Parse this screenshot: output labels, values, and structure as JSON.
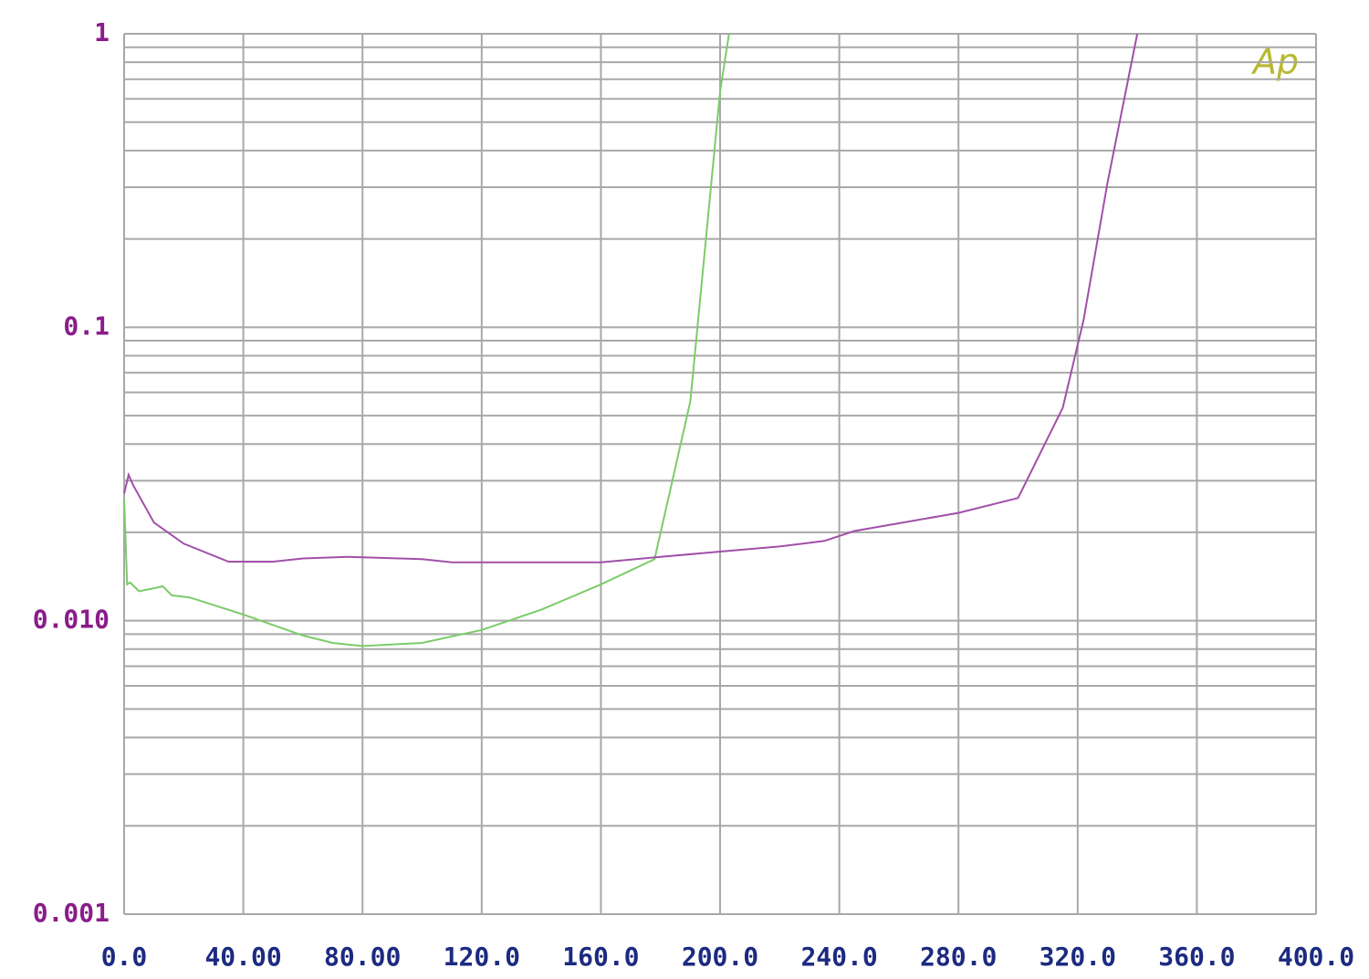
{
  "chart_data": {
    "type": "line",
    "logo": "Ap",
    "log_y": true,
    "grid": true,
    "minor_grid": true,
    "xlim": [
      0,
      400
    ],
    "xticks": [
      {
        "value": 0,
        "label": "0.0"
      },
      {
        "value": 40,
        "label": "40.00"
      },
      {
        "value": 80,
        "label": "80.00"
      },
      {
        "value": 120,
        "label": "120.0"
      },
      {
        "value": 160,
        "label": "160.0"
      },
      {
        "value": 200,
        "label": "200.0"
      },
      {
        "value": 240,
        "label": "240.0"
      },
      {
        "value": 280,
        "label": "280.0"
      },
      {
        "value": 320,
        "label": "320.0"
      },
      {
        "value": 360,
        "label": "360.0"
      },
      {
        "value": 400,
        "label": "400.0"
      }
    ],
    "ylim": [
      0.001,
      1
    ],
    "yticks": [
      {
        "value": 0.001,
        "label": "0.001"
      },
      {
        "value": 0.01,
        "label": "0.010"
      },
      0.1,
      1
    ],
    "series": [
      {
        "color": "#7ccb6a",
        "x": [
          0,
          1,
          2,
          5,
          10,
          13,
          16,
          22,
          40,
          60,
          70,
          80,
          100,
          120,
          140,
          160,
          178,
          190,
          200,
          203
        ],
        "values": [
          0.026,
          0.0133,
          0.0135,
          0.0126,
          0.0129,
          0.0131,
          0.0122,
          0.012,
          0.0105,
          0.0089,
          0.0084,
          0.0082,
          0.0084,
          0.0093,
          0.0109,
          0.0133,
          0.0162,
          0.0559,
          0.636,
          1.0
        ]
      },
      {
        "color": "#a050a8",
        "x": [
          0,
          1.5,
          3,
          10,
          20,
          35,
          50,
          60,
          75,
          100,
          110,
          160,
          180,
          200,
          220,
          235,
          245,
          280,
          300,
          315,
          322,
          330,
          340
        ],
        "values": [
          0.0271,
          0.0314,
          0.029,
          0.0216,
          0.0183,
          0.0159,
          0.0159,
          0.0163,
          0.0165,
          0.0162,
          0.0158,
          0.0158,
          0.0165,
          0.0172,
          0.0179,
          0.0187,
          0.0202,
          0.0233,
          0.0262,
          0.0532,
          0.106,
          0.311,
          1.0
        ]
      }
    ]
  }
}
